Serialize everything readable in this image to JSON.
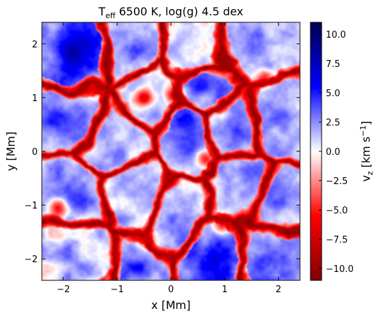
{
  "chart_data": {
    "type": "heatmap",
    "title": {
      "prefix": "T",
      "subscript": "eff",
      "suffix": " 6500 K, log(g) 4.5 dex"
    },
    "xlabel": "x [Mm]",
    "ylabel": "y [Mm]",
    "xlim": [
      -2.4,
      2.4
    ],
    "ylim": [
      -2.4,
      2.4
    ],
    "xticks": [
      -2,
      -1,
      0,
      1,
      2
    ],
    "yticks": [
      -2,
      -1,
      0,
      1,
      2
    ],
    "xtick_labels": [
      "−2",
      "−1",
      "0",
      "1",
      "2"
    ],
    "ytick_labels": [
      "−2",
      "−1",
      "0",
      "1",
      "2"
    ],
    "colorbar": {
      "label_prefix": "v",
      "label_subscript": "z",
      "label_suffix": " [km s",
      "label_superscript": "−1",
      "label_close": "]",
      "range": [
        -11,
        11
      ],
      "ticks": [
        10.0,
        7.5,
        5.0,
        2.5,
        0.0,
        -2.5,
        -5.0,
        -7.5,
        -10.0
      ],
      "tick_labels": [
        "10.0",
        "7.5",
        "5.0",
        "2.5",
        "0.0",
        "−2.5",
        "−5.0",
        "−7.5",
        "−10.0"
      ],
      "colormap": "seismic",
      "colors": {
        "low": "#800000",
        "mid": "#ffffff",
        "high": "#00004d"
      }
    },
    "field": {
      "description_of_values": "vertical velocity vz, km/s; negative (red) = downflow lanes, positive (blue) = upflow granules",
      "vmin": -11,
      "vmax": 11,
      "granules": [
        {
          "x": -1.75,
          "y": 1.85,
          "v": 7.5
        },
        {
          "x": -0.85,
          "y": 1.95,
          "v": 3.0
        },
        {
          "x": 0.45,
          "y": 1.75,
          "v": 1.5
        },
        {
          "x": 1.5,
          "y": 1.95,
          "v": 3.0
        },
        {
          "x": -1.95,
          "y": 0.55,
          "v": 5.0
        },
        {
          "x": -1.1,
          "y": 0.15,
          "v": 2.0
        },
        {
          "x": -0.25,
          "y": 0.95,
          "v": 1.5
        },
        {
          "x": 0.3,
          "y": 0.25,
          "v": 5.0
        },
        {
          "x": 1.2,
          "y": 0.45,
          "v": 2.5
        },
        {
          "x": 2.0,
          "y": 0.6,
          "v": 3.0
        },
        {
          "x": -1.7,
          "y": -0.75,
          "v": 3.5
        },
        {
          "x": -0.7,
          "y": -0.9,
          "v": 1.5
        },
        {
          "x": 0.05,
          "y": -1.25,
          "v": 2.5
        },
        {
          "x": 1.35,
          "y": -0.6,
          "v": 2.5
        },
        {
          "x": 2.0,
          "y": -0.95,
          "v": 3.0
        },
        {
          "x": -1.75,
          "y": -2.05,
          "v": 2.0
        },
        {
          "x": -0.6,
          "y": -2.1,
          "v": 4.0
        },
        {
          "x": 0.75,
          "y": -2.05,
          "v": 5.5
        },
        {
          "x": 1.85,
          "y": -2.0,
          "v": 4.5
        },
        {
          "x": 0.6,
          "y": 1.15,
          "v": 3.5
        }
      ],
      "downflows": [
        {
          "x": -0.5,
          "y": 1.0,
          "v": -10.0
        },
        {
          "x": 0.05,
          "y": 1.05,
          "v": -9.5
        },
        {
          "x": 0.65,
          "y": -0.15,
          "v": -8.5
        },
        {
          "x": 0.95,
          "y": -1.35,
          "v": -9.0
        },
        {
          "x": -2.1,
          "y": -1.05,
          "v": -8.5
        },
        {
          "x": -0.45,
          "y": -1.65,
          "v": -8.0
        },
        {
          "x": 1.75,
          "y": 1.35,
          "v": -8.0
        },
        {
          "x": -1.35,
          "y": 1.15,
          "v": -8.0
        }
      ]
    }
  }
}
